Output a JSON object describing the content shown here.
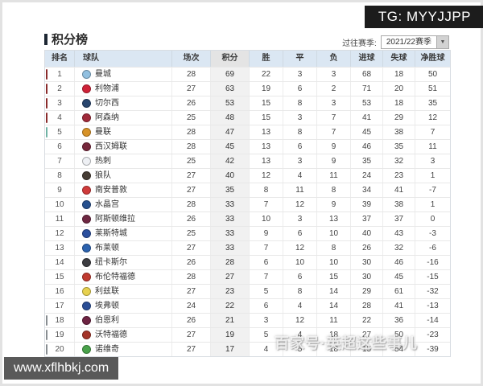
{
  "title": "积分榜",
  "season_selector": {
    "label": "过往赛季:",
    "value": "2021/22赛季"
  },
  "watermarks": {
    "top_right": "TG: MYYJJPP",
    "bottom_left": "www.xflhbkj.com",
    "overlay": "百家号·英超这些事儿"
  },
  "colors": {
    "header_bg": "#dbe7f3",
    "points_column_bg": "#f1f1f1",
    "champions_league_indicator": "#8a2b2b",
    "europa_league_indicator": "#6fb3a4",
    "relegation_indicator": "#888d91"
  },
  "table": {
    "columns": [
      "排名",
      "球队",
      "场次",
      "积分",
      "胜",
      "平",
      "负",
      "进球",
      "失球",
      "净胜球"
    ],
    "rows": [
      {
        "rank": 1,
        "team": "曼城",
        "played": 28,
        "points": 69,
        "win": 22,
        "draw": 3,
        "loss": 3,
        "gf": 68,
        "ga": 18,
        "gd": 50,
        "indicator": "#8a2b2b",
        "badge_color": "#92c0e0"
      },
      {
        "rank": 2,
        "team": "利物浦",
        "played": 27,
        "points": 63,
        "win": 19,
        "draw": 6,
        "loss": 2,
        "gf": 71,
        "ga": 20,
        "gd": 51,
        "indicator": "#8a2b2b",
        "badge_color": "#cf2238"
      },
      {
        "rank": 3,
        "team": "切尔西",
        "played": 26,
        "points": 53,
        "win": 15,
        "draw": 8,
        "loss": 3,
        "gf": 53,
        "ga": 18,
        "gd": 35,
        "indicator": "#8a2b2b",
        "badge_color": "#28456e"
      },
      {
        "rank": 4,
        "team": "阿森纳",
        "played": 25,
        "points": 48,
        "win": 15,
        "draw": 3,
        "loss": 7,
        "gf": 41,
        "ga": 29,
        "gd": 12,
        "indicator": "#8a2b2b",
        "badge_color": "#a02a3a"
      },
      {
        "rank": 5,
        "team": "曼联",
        "played": 28,
        "points": 47,
        "win": 13,
        "draw": 8,
        "loss": 7,
        "gf": 45,
        "ga": 38,
        "gd": 7,
        "indicator": "#6fb3a4",
        "badge_color": "#d79227"
      },
      {
        "rank": 6,
        "team": "西汉姆联",
        "played": 28,
        "points": 45,
        "win": 13,
        "draw": 6,
        "loss": 9,
        "gf": 46,
        "ga": 35,
        "gd": 11,
        "indicator": null,
        "badge_color": "#77283c"
      },
      {
        "rank": 7,
        "team": "热刺",
        "played": 25,
        "points": 42,
        "win": 13,
        "draw": 3,
        "loss": 9,
        "gf": 35,
        "ga": 32,
        "gd": 3,
        "indicator": null,
        "badge_color": "#eef0f4"
      },
      {
        "rank": 8,
        "team": "狼队",
        "played": 27,
        "points": 40,
        "win": 12,
        "draw": 4,
        "loss": 11,
        "gf": 24,
        "ga": 23,
        "gd": 1,
        "indicator": null,
        "badge_color": "#463c34"
      },
      {
        "rank": 9,
        "team": "南安普敦",
        "played": 27,
        "points": 35,
        "win": 8,
        "draw": 11,
        "loss": 8,
        "gf": 34,
        "ga": 41,
        "gd": -7,
        "indicator": null,
        "badge_color": "#cf3a3a"
      },
      {
        "rank": 10,
        "team": "水晶宫",
        "played": 28,
        "points": 33,
        "win": 7,
        "draw": 12,
        "loss": 9,
        "gf": 39,
        "ga": 38,
        "gd": 1,
        "indicator": null,
        "badge_color": "#27508e"
      },
      {
        "rank": 11,
        "team": "阿斯顿维拉",
        "played": 26,
        "points": 33,
        "win": 10,
        "draw": 3,
        "loss": 13,
        "gf": 37,
        "ga": 37,
        "gd": 0,
        "indicator": null,
        "badge_color": "#6e2742"
      },
      {
        "rank": 12,
        "team": "莱斯特城",
        "played": 25,
        "points": 33,
        "win": 9,
        "draw": 6,
        "loss": 10,
        "gf": 40,
        "ga": 43,
        "gd": -3,
        "indicator": null,
        "badge_color": "#2b4f9e"
      },
      {
        "rank": 13,
        "team": "布莱顿",
        "played": 27,
        "points": 33,
        "win": 7,
        "draw": 12,
        "loss": 8,
        "gf": 26,
        "ga": 32,
        "gd": -6,
        "indicator": null,
        "badge_color": "#2b62ae"
      },
      {
        "rank": 14,
        "team": "纽卡斯尔",
        "played": 26,
        "points": 28,
        "win": 6,
        "draw": 10,
        "loss": 10,
        "gf": 30,
        "ga": 46,
        "gd": -16,
        "indicator": null,
        "badge_color": "#3c3c40"
      },
      {
        "rank": 15,
        "team": "布伦特福德",
        "played": 28,
        "points": 27,
        "win": 7,
        "draw": 6,
        "loss": 15,
        "gf": 30,
        "ga": 45,
        "gd": -15,
        "indicator": null,
        "badge_color": "#c03a30"
      },
      {
        "rank": 16,
        "team": "利兹联",
        "played": 27,
        "points": 23,
        "win": 5,
        "draw": 8,
        "loss": 14,
        "gf": 29,
        "ga": 61,
        "gd": -32,
        "indicator": null,
        "badge_color": "#e7d14f"
      },
      {
        "rank": 17,
        "team": "埃弗顿",
        "played": 24,
        "points": 22,
        "win": 6,
        "draw": 4,
        "loss": 14,
        "gf": 28,
        "ga": 41,
        "gd": -13,
        "indicator": null,
        "badge_color": "#2a4e96"
      },
      {
        "rank": 18,
        "team": "伯恩利",
        "played": 26,
        "points": 21,
        "win": 3,
        "draw": 12,
        "loss": 11,
        "gf": 22,
        "ga": 36,
        "gd": -14,
        "indicator": "#888d91",
        "badge_color": "#6d2342"
      },
      {
        "rank": 19,
        "team": "沃特福德",
        "played": 27,
        "points": 19,
        "win": 5,
        "draw": 4,
        "loss": 18,
        "gf": 27,
        "ga": 50,
        "gd": -23,
        "indicator": "#888d91",
        "badge_color": "#a43428"
      },
      {
        "rank": 20,
        "team": "诺维奇",
        "played": 27,
        "points": 17,
        "win": 4,
        "draw": 5,
        "loss": 18,
        "gf": 15,
        "ga": 54,
        "gd": -39,
        "indicator": "#888d91",
        "badge_color": "#49a24a"
      }
    ]
  }
}
